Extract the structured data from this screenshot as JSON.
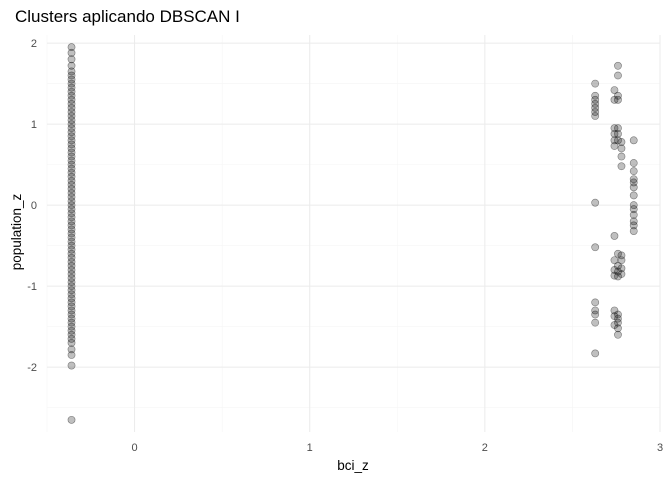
{
  "chart_data": {
    "type": "scatter",
    "title": "Clusters aplicando DBSCAN I",
    "xlabel": "bci_z",
    "ylabel": "population_z",
    "xlim": [
      -0.5,
      3.0
    ],
    "ylim": [
      -2.8,
      2.1
    ],
    "x_ticks": [
      0,
      1,
      2,
      3
    ],
    "y_ticks": [
      -2,
      -1,
      0,
      1,
      2
    ],
    "grid": true,
    "point_color": "#000000",
    "point_opacity": 0.25,
    "series": [
      {
        "points": [
          [
            -0.36,
            1.95
          ],
          [
            -0.36,
            1.88
          ],
          [
            -0.36,
            1.8
          ],
          [
            -0.36,
            1.72
          ],
          [
            -0.36,
            1.65
          ],
          [
            -0.36,
            1.6
          ],
          [
            -0.36,
            1.55
          ],
          [
            -0.36,
            1.5
          ],
          [
            -0.36,
            1.45
          ],
          [
            -0.36,
            1.4
          ],
          [
            -0.36,
            1.35
          ],
          [
            -0.36,
            1.3
          ],
          [
            -0.36,
            1.25
          ],
          [
            -0.36,
            1.2
          ],
          [
            -0.36,
            1.15
          ],
          [
            -0.36,
            1.1
          ],
          [
            -0.36,
            1.05
          ],
          [
            -0.36,
            1.0
          ],
          [
            -0.36,
            0.95
          ],
          [
            -0.36,
            0.9
          ],
          [
            -0.36,
            0.85
          ],
          [
            -0.36,
            0.8
          ],
          [
            -0.36,
            0.75
          ],
          [
            -0.36,
            0.7
          ],
          [
            -0.36,
            0.65
          ],
          [
            -0.36,
            0.6
          ],
          [
            -0.36,
            0.55
          ],
          [
            -0.36,
            0.5
          ],
          [
            -0.36,
            0.45
          ],
          [
            -0.36,
            0.4
          ],
          [
            -0.36,
            0.35
          ],
          [
            -0.36,
            0.3
          ],
          [
            -0.36,
            0.25
          ],
          [
            -0.36,
            0.2
          ],
          [
            -0.36,
            0.15
          ],
          [
            -0.36,
            0.1
          ],
          [
            -0.36,
            0.05
          ],
          [
            -0.36,
            0.0
          ],
          [
            -0.36,
            -0.05
          ],
          [
            -0.36,
            -0.1
          ],
          [
            -0.36,
            -0.15
          ],
          [
            -0.36,
            -0.2
          ],
          [
            -0.36,
            -0.25
          ],
          [
            -0.36,
            -0.3
          ],
          [
            -0.36,
            -0.35
          ],
          [
            -0.36,
            -0.4
          ],
          [
            -0.36,
            -0.45
          ],
          [
            -0.36,
            -0.5
          ],
          [
            -0.36,
            -0.55
          ],
          [
            -0.36,
            -0.6
          ],
          [
            -0.36,
            -0.65
          ],
          [
            -0.36,
            -0.7
          ],
          [
            -0.36,
            -0.75
          ],
          [
            -0.36,
            -0.8
          ],
          [
            -0.36,
            -0.85
          ],
          [
            -0.36,
            -0.9
          ],
          [
            -0.36,
            -0.95
          ],
          [
            -0.36,
            -1.0
          ],
          [
            -0.36,
            -1.05
          ],
          [
            -0.36,
            -1.1
          ],
          [
            -0.36,
            -1.15
          ],
          [
            -0.36,
            -1.2
          ],
          [
            -0.36,
            -1.25
          ],
          [
            -0.36,
            -1.3
          ],
          [
            -0.36,
            -1.35
          ],
          [
            -0.36,
            -1.4
          ],
          [
            -0.36,
            -1.45
          ],
          [
            -0.36,
            -1.5
          ],
          [
            -0.36,
            -1.55
          ],
          [
            -0.36,
            -1.6
          ],
          [
            -0.36,
            -1.65
          ],
          [
            -0.36,
            -1.7
          ],
          [
            -0.36,
            -1.78
          ],
          [
            -0.36,
            -1.85
          ],
          [
            -0.36,
            -1.98
          ],
          [
            -0.36,
            -2.65
          ],
          [
            2.63,
            1.5
          ],
          [
            2.63,
            1.35
          ],
          [
            2.63,
            1.3
          ],
          [
            2.63,
            1.25
          ],
          [
            2.63,
            1.2
          ],
          [
            2.63,
            1.15
          ],
          [
            2.63,
            1.1
          ],
          [
            2.63,
            0.03
          ],
          [
            2.63,
            -0.52
          ],
          [
            2.63,
            -1.2
          ],
          [
            2.63,
            -1.3
          ],
          [
            2.63,
            -1.35
          ],
          [
            2.63,
            -1.45
          ],
          [
            2.63,
            -1.83
          ],
          [
            2.74,
            1.42
          ],
          [
            2.74,
            1.3
          ],
          [
            2.74,
            0.95
          ],
          [
            2.74,
            0.88
          ],
          [
            2.74,
            0.8
          ],
          [
            2.74,
            0.73
          ],
          [
            2.74,
            -0.38
          ],
          [
            2.74,
            -0.68
          ],
          [
            2.74,
            -0.8
          ],
          [
            2.74,
            -0.87
          ],
          [
            2.74,
            -1.3
          ],
          [
            2.74,
            -1.37
          ],
          [
            2.74,
            -1.48
          ],
          [
            2.76,
            1.72
          ],
          [
            2.76,
            1.6
          ],
          [
            2.76,
            1.35
          ],
          [
            2.76,
            1.3
          ],
          [
            2.76,
            0.95
          ],
          [
            2.76,
            0.88
          ],
          [
            2.76,
            0.8
          ],
          [
            2.76,
            -0.6
          ],
          [
            2.76,
            -0.75
          ],
          [
            2.76,
            -0.82
          ],
          [
            2.76,
            -0.88
          ],
          [
            2.76,
            -1.35
          ],
          [
            2.76,
            -1.4
          ],
          [
            2.76,
            -1.45
          ],
          [
            2.76,
            -1.52
          ],
          [
            2.76,
            -1.6
          ],
          [
            2.78,
            0.78
          ],
          [
            2.78,
            0.7
          ],
          [
            2.78,
            0.6
          ],
          [
            2.78,
            0.48
          ],
          [
            2.78,
            -0.62
          ],
          [
            2.78,
            -0.68
          ],
          [
            2.78,
            -0.78
          ],
          [
            2.78,
            -0.85
          ],
          [
            2.85,
            0.8
          ],
          [
            2.85,
            0.52
          ],
          [
            2.85,
            0.42
          ],
          [
            2.85,
            0.32
          ],
          [
            2.85,
            0.28
          ],
          [
            2.85,
            0.22
          ],
          [
            2.85,
            0.12
          ],
          [
            2.85,
            0.0
          ],
          [
            2.85,
            -0.05
          ],
          [
            2.85,
            -0.12
          ],
          [
            2.85,
            -0.2
          ],
          [
            2.85,
            -0.25
          ],
          [
            2.85,
            -0.32
          ]
        ]
      }
    ]
  }
}
